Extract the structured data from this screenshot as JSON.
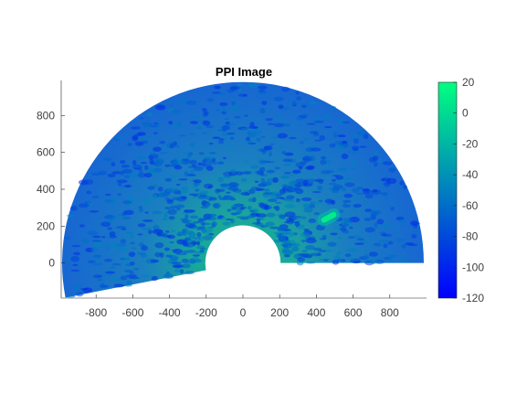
{
  "chart_data": {
    "type": "heatmap",
    "title": "PPI Image",
    "xlabel": "",
    "ylabel": "",
    "xlim": [
      -990,
      1000
    ],
    "ylim": [
      -190,
      990
    ],
    "xticks": [
      -800,
      -600,
      -400,
      -200,
      0,
      200,
      400,
      600,
      800
    ],
    "yticks": [
      0,
      200,
      400,
      600,
      800
    ],
    "sector": {
      "r_min": 205,
      "r_max": 985,
      "azimuth_start_deg": 0,
      "azimuth_end_deg": 191
    },
    "features": [
      {
        "label": "bright target",
        "range": [
          500,
          560
        ],
        "azimuth_deg": 28,
        "value": 10
      }
    ],
    "background_level": -55,
    "colorbar": {
      "min": -120,
      "max": 20,
      "ticks": [
        20,
        0,
        -20,
        -40,
        -60,
        -80,
        -100,
        -120
      ],
      "colormap": [
        "#0000ff",
        "#00ff80"
      ]
    }
  }
}
